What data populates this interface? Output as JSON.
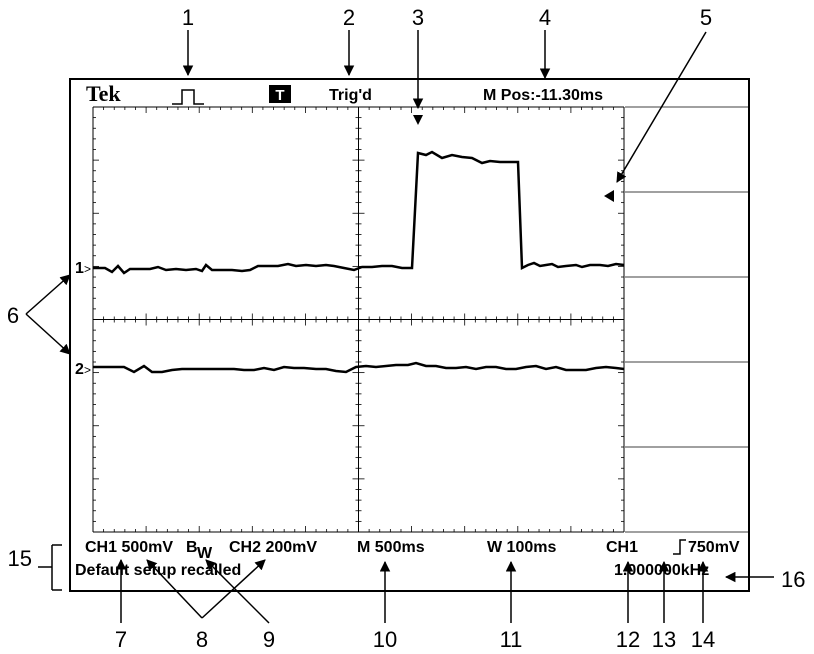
{
  "header": {
    "brand": "Tek",
    "trigger_badge": "T",
    "trigger_status": "Trig'd",
    "main_position": "M Pos:-11.30ms"
  },
  "channels": {
    "ch1_marker": "1",
    "ch2_marker": "2"
  },
  "footer": {
    "ch1_scale": "CH1 500mV",
    "ch1_bw_mark": "B",
    "bw_w": "W",
    "ch2_scale": "CH2 200mV",
    "main_timebase": "M 500ms",
    "window_timebase": "W 100ms",
    "trigger_source": "CH1",
    "trigger_level": "750mV",
    "message": "Default setup recalled",
    "frequency": "1.000000kHz"
  },
  "callouts": [
    "1",
    "2",
    "3",
    "4",
    "5",
    "6",
    "7",
    "8",
    "9",
    "10",
    "11",
    "12",
    "13",
    "14",
    "15",
    "16"
  ],
  "colors": {
    "ink": "#000000",
    "background": "#ffffff"
  }
}
